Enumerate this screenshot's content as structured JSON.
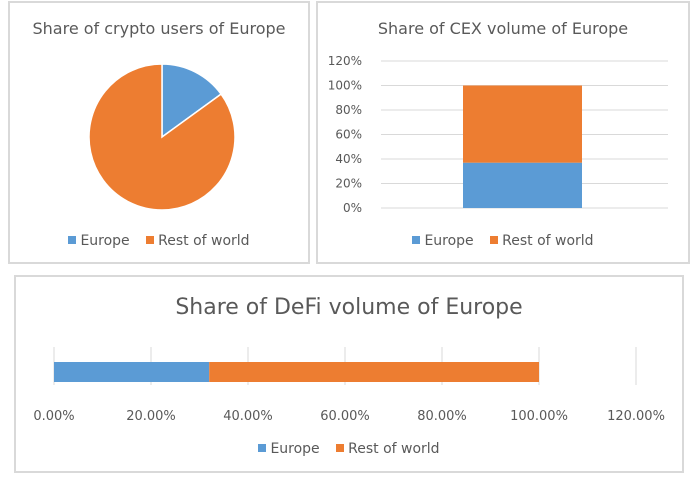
{
  "colors": {
    "europe": "#5b9bd5",
    "rest": "#ed7d31",
    "grid": "#d9d9d9",
    "text": "#595959"
  },
  "legend": [
    "Europe",
    "Rest of world"
  ],
  "chart_data": [
    {
      "type": "pie",
      "title": "Share of crypto users of Europe",
      "labels": [
        "Europe",
        "Rest of world"
      ],
      "values": [
        15,
        85
      ],
      "legend_position": "bottom"
    },
    {
      "type": "bar",
      "stacked": true,
      "title": "Share of CEX volume of Europe",
      "categories": [
        ""
      ],
      "series": [
        {
          "name": "Europe",
          "values": [
            37
          ]
        },
        {
          "name": "Rest of world",
          "values": [
            63
          ]
        }
      ],
      "ylim": [
        0,
        120
      ],
      "yticks": [
        "0%",
        "20%",
        "40%",
        "60%",
        "80%",
        "100%",
        "120%"
      ],
      "grid": true,
      "legend_position": "bottom"
    },
    {
      "type": "bar",
      "orientation": "horizontal",
      "stacked": true,
      "title": "Share of DeFi volume of Europe",
      "categories": [
        ""
      ],
      "series": [
        {
          "name": "Europe",
          "values": [
            32
          ]
        },
        {
          "name": "Rest of world",
          "values": [
            68
          ]
        }
      ],
      "xlim": [
        0,
        120
      ],
      "xticks": [
        "0.00%",
        "20.00%",
        "40.00%",
        "60.00%",
        "80.00%",
        "100.00%",
        "120.00%"
      ],
      "grid": true,
      "legend_position": "bottom"
    }
  ]
}
